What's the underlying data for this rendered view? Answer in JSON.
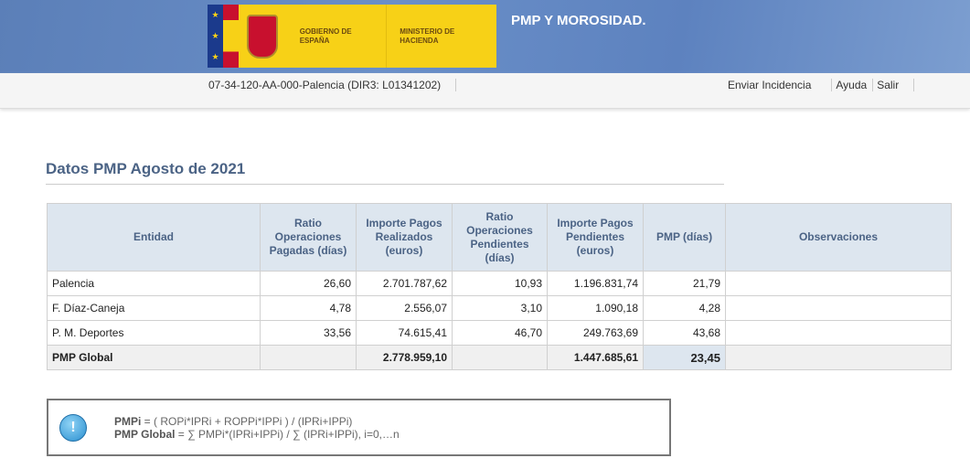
{
  "header": {
    "logo_text_1": "GOBIERNO DE ESPAÑA",
    "logo_text_2": "MINISTERIO DE HACIENDA",
    "app_title": "PMP Y MOROSIDAD."
  },
  "bar": {
    "entity": "07-34-120-AA-000-Palencia (DIR3: L01341202)",
    "links": [
      "Enviar Incidencia",
      "Ayuda",
      "Salir"
    ]
  },
  "page_title": "Datos PMP Agosto de 2021",
  "table": {
    "headers": [
      "Entidad",
      "Ratio Operaciones Pagadas (días)",
      "Importe Pagos Realizados (euros)",
      "Ratio Operaciones Pendientes (días)",
      "Importe Pagos Pendientes (euros)",
      "PMP (días)",
      "Observaciones"
    ],
    "rows": [
      [
        "Palencia",
        "26,60",
        "2.701.787,62",
        "10,93",
        "1.196.831,74",
        "21,79",
        ""
      ],
      [
        "F. Díaz-Caneja",
        "4,78",
        "2.556,07",
        "3,10",
        "1.090,18",
        "4,28",
        ""
      ],
      [
        "P. M. Deportes",
        "33,56",
        "74.615,41",
        "46,70",
        "249.763,69",
        "43,68",
        ""
      ]
    ],
    "total": [
      "PMP Global",
      "",
      "2.778.959,10",
      "",
      "1.447.685,61",
      "23,45",
      ""
    ]
  },
  "info": {
    "icon": "exclamation-icon",
    "l1_label": "PMPi",
    "l1_text": " = ( ROPi*IPRi + ROPPi*IPPi ) / (IPRi+IPPi)",
    "l2_label": "PMP Global",
    "l2_text": " = ∑ PMPi*(IPRi+IPPi) / ∑ (IPRi+IPPi), i=0,…n"
  }
}
